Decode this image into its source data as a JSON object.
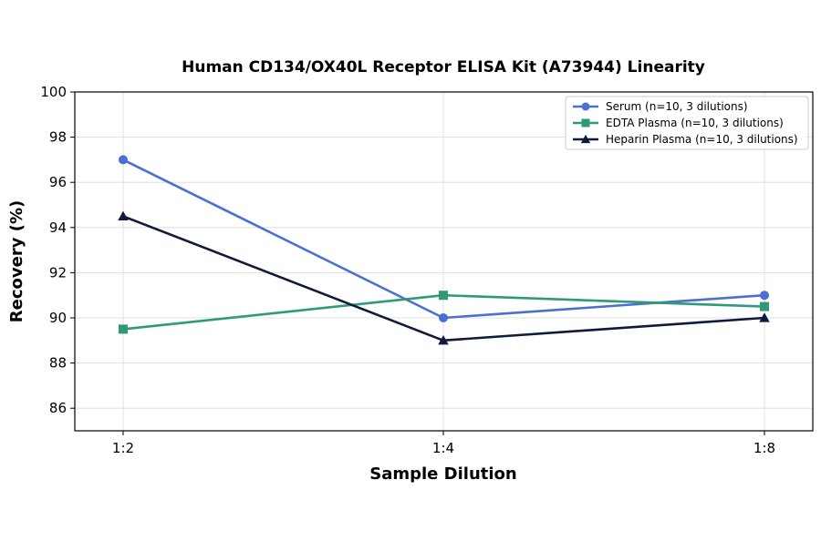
{
  "chart_data": {
    "type": "line",
    "title": "Human CD134/OX40L Receptor ELISA Kit (A73944) Linearity",
    "xlabel": "Sample Dilution",
    "ylabel": "Recovery (%)",
    "categories": [
      "1:2",
      "1:4",
      "1:8"
    ],
    "ylim": [
      85,
      100
    ],
    "yticks": [
      86,
      88,
      90,
      92,
      94,
      96,
      98,
      100
    ],
    "grid": true,
    "legend_position": "top-right",
    "series": [
      {
        "name": "Serum (n=10, 3 dilutions)",
        "values": [
          97,
          90,
          91
        ],
        "color": "#4c6fd4",
        "marker": "circle"
      },
      {
        "name": "EDTA Plasma (n=10, 3 dilutions)",
        "values": [
          89.5,
          91,
          90.5
        ],
        "color": "#2e9b76",
        "marker": "square"
      },
      {
        "name": "Heparin Plasma (n=10, 3 dilutions)",
        "values": [
          94.5,
          89,
          90
        ],
        "color": "#0f1a3c",
        "marker": "triangle"
      }
    ]
  }
}
